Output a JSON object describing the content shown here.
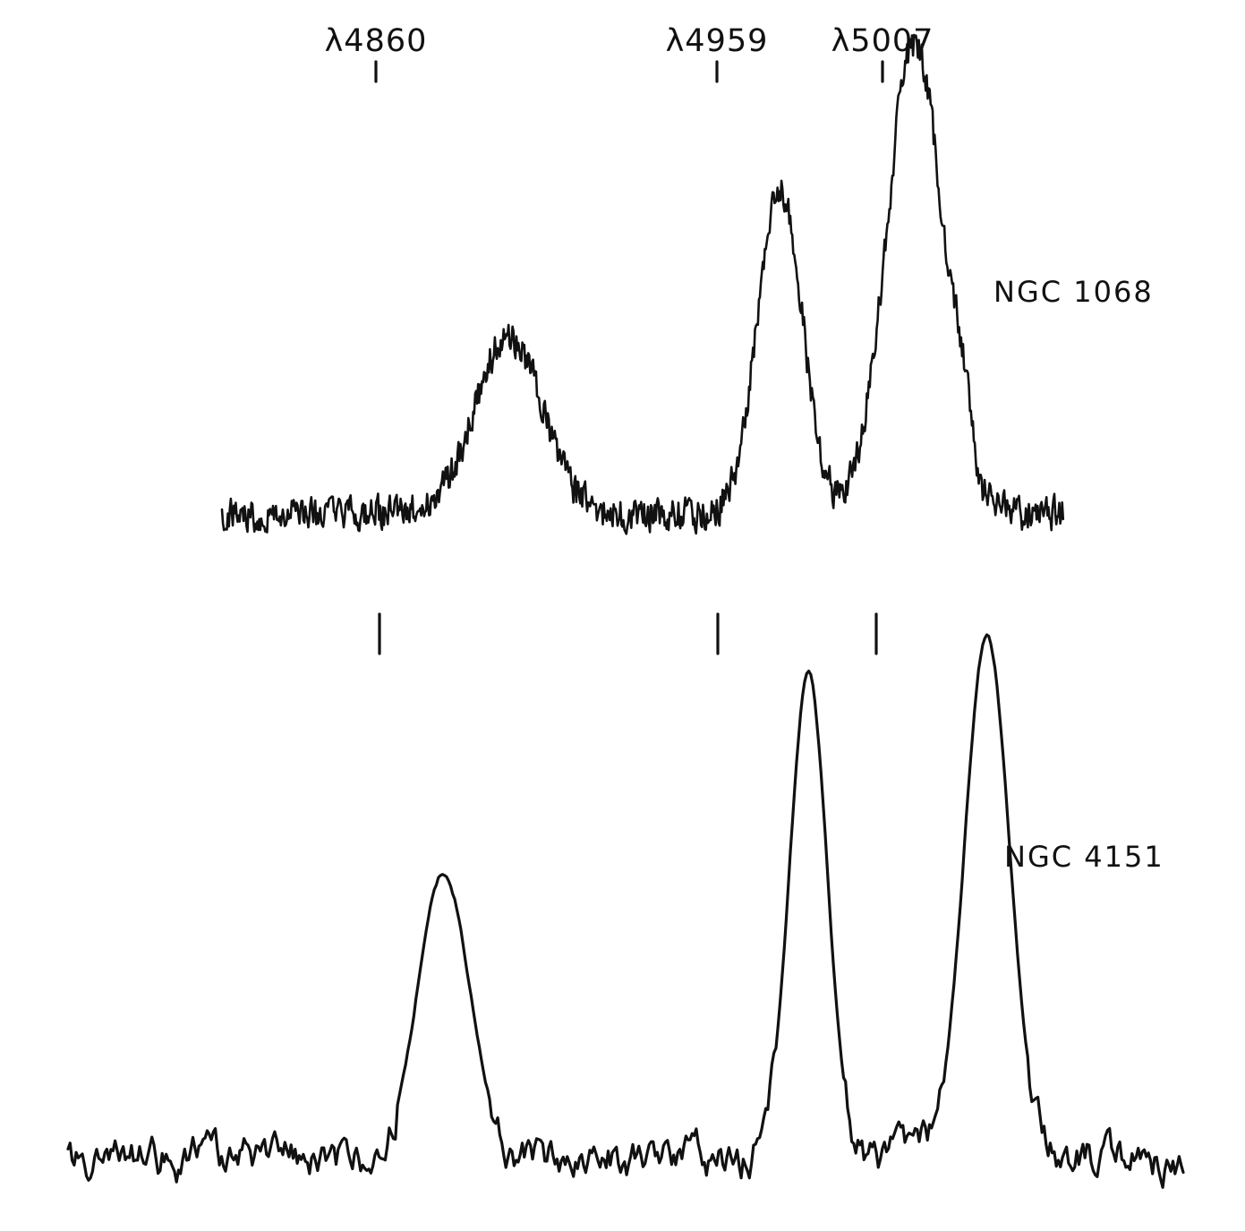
{
  "chart_data": [
    {
      "type": "line",
      "object_label": "NGC 1068",
      "line_labels": [
        "λ4860",
        "λ4959",
        "λ5007"
      ],
      "marker_wavelengths": [
        4860,
        4959,
        5007
      ],
      "xlim": [
        4760,
        5060
      ],
      "ylim": [
        0,
        1
      ],
      "grid": false,
      "axes_visible": false,
      "peaks": [
        {
          "center": 4862,
          "amplitude": 0.36,
          "width": 12
        },
        {
          "center": 4959,
          "amplitude": 0.66,
          "width": 8
        },
        {
          "center": 5007,
          "amplitude": 0.96,
          "width": 10
        },
        {
          "center": 5024,
          "amplitude": 0.12,
          "width": 3
        }
      ],
      "baseline": 0.12,
      "noise_level": 0.035
    },
    {
      "type": "line",
      "object_label": "NGC 4151",
      "line_labels": [],
      "marker_wavelengths": [
        4860,
        4959,
        5007
      ],
      "xlim": [
        4760,
        5060
      ],
      "ylim": [
        0,
        1
      ],
      "grid": false,
      "axes_visible": false,
      "peaks": [
        {
          "center": 4861,
          "amplitude": 0.54,
          "width": 7
        },
        {
          "center": 4959,
          "amplitude": 0.92,
          "width": 5
        },
        {
          "center": 5007,
          "amplitude": 0.99,
          "width": 6
        }
      ],
      "baseline": 0.06,
      "noise_level": 0.05
    }
  ]
}
